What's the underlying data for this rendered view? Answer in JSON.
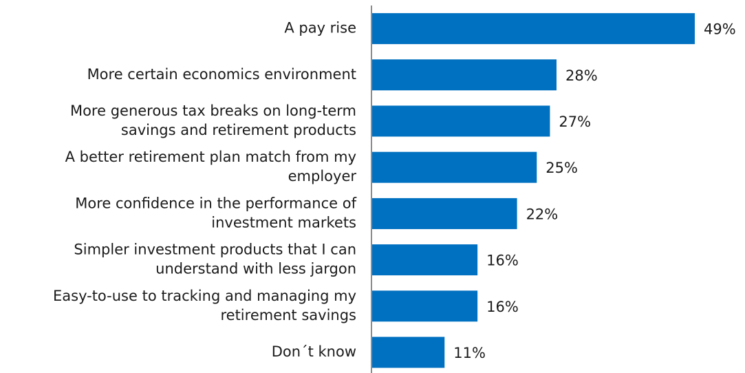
{
  "chart_data": {
    "type": "bar",
    "orientation": "horizontal",
    "categories": [
      [
        "A pay rise"
      ],
      [
        "More certain economics environment"
      ],
      [
        "More generous tax breaks on long-term",
        "savings and retirement products"
      ],
      [
        "A better retirement plan match from my",
        "employer"
      ],
      [
        "More confidence in the performance of",
        "investment markets"
      ],
      [
        "Simpler investment products that I can",
        "understand with less jargon"
      ],
      [
        "Easy-to-use to tracking and managing my",
        "retirement savings"
      ],
      [
        "Don´t know"
      ]
    ],
    "values": [
      49,
      28,
      27,
      25,
      22,
      16,
      16,
      11
    ],
    "value_labels": [
      "49%",
      "28%",
      "27%",
      "25%",
      "22%",
      "16%",
      "16%",
      "11%"
    ],
    "bar_color": "#0070c0",
    "grid": false,
    "legend": "none",
    "xlim": [
      0,
      49
    ]
  }
}
